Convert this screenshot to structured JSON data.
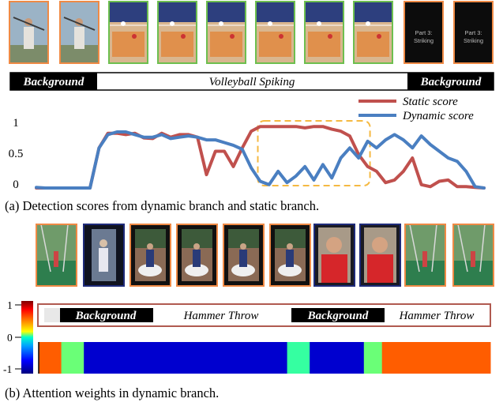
{
  "panel_a": {
    "frames": [
      {
        "kind": "archery",
        "border": "#ef8a45",
        "text": ""
      },
      {
        "kind": "archery",
        "border": "#ef8a45",
        "text": ""
      },
      {
        "kind": "court",
        "border": "#6dbf4f",
        "text": ""
      },
      {
        "kind": "court",
        "border": "#6dbf4f",
        "text": ""
      },
      {
        "kind": "court",
        "border": "#6dbf4f",
        "text": ""
      },
      {
        "kind": "court",
        "border": "#6dbf4f",
        "text": ""
      },
      {
        "kind": "court",
        "border": "#6dbf4f",
        "text": ""
      },
      {
        "kind": "court",
        "border": "#6dbf4f",
        "text": ""
      },
      {
        "kind": "title-card",
        "border": "#ef8a45",
        "text": "Part 3: Striking"
      },
      {
        "kind": "title-card",
        "border": "#ef8a45",
        "text": "Part 3: Striking"
      }
    ],
    "segments": [
      "Background",
      "Volleyball Spiking",
      "Background"
    ],
    "caption": "(a) Detection scores from dynamic branch and static branch."
  },
  "chart_data": {
    "type": "line",
    "x": [
      0,
      2,
      4,
      6,
      8,
      10,
      12,
      14,
      16,
      18,
      20,
      22,
      24,
      26,
      28,
      30,
      32,
      34,
      36,
      38,
      40,
      42,
      44,
      46,
      48,
      50,
      52,
      54,
      56,
      58,
      60,
      62,
      64,
      66,
      68,
      70,
      72,
      74,
      76,
      78,
      80,
      82,
      84,
      86,
      88,
      90,
      92,
      94,
      96,
      98,
      100
    ],
    "series": [
      {
        "name": "Static score",
        "color": "#c0504d",
        "values": [
          0,
          0,
          0,
          0,
          0,
          0,
          0,
          0.6,
          0.82,
          0.82,
          0.8,
          0.82,
          0.75,
          0.74,
          0.82,
          0.76,
          0.8,
          0.8,
          0.76,
          0.2,
          0.55,
          0.55,
          0.32,
          0.6,
          0.85,
          0.92,
          0.92,
          0.92,
          0.92,
          0.92,
          0.9,
          0.92,
          0.92,
          0.88,
          0.85,
          0.78,
          0.5,
          0.32,
          0.25,
          0.08,
          0.12,
          0.25,
          0.45,
          0.05,
          0.02,
          0.1,
          0.12,
          0.02,
          0.02,
          0.01,
          0
        ]
      },
      {
        "name": "Dynamic score",
        "color": "#4a7fc1",
        "values": [
          0.01,
          0,
          0,
          0,
          0,
          0,
          0,
          0.6,
          0.8,
          0.84,
          0.84,
          0.8,
          0.76,
          0.76,
          0.8,
          0.74,
          0.76,
          0.78,
          0.76,
          0.72,
          0.72,
          0.68,
          0.64,
          0.58,
          0.3,
          0.1,
          0.05,
          0.25,
          0.08,
          0.18,
          0.32,
          0.12,
          0.35,
          0.15,
          0.45,
          0.6,
          0.45,
          0.7,
          0.6,
          0.72,
          0.8,
          0.72,
          0.6,
          0.78,
          0.65,
          0.55,
          0.45,
          0.4,
          0.25,
          0.02,
          0
        ]
      }
    ],
    "yticks": [
      "0",
      "0.5",
      "1"
    ],
    "ylim": [
      0,
      1.1
    ],
    "legend": "top-right",
    "highlight": {
      "x_start": 50,
      "x_end": 74,
      "color": "#f5b942"
    }
  },
  "panel_b": {
    "frames": [
      {
        "kind": "field",
        "border": "#ef8a45"
      },
      {
        "kind": "dark-field",
        "border": "#1f2b7a"
      },
      {
        "kind": "throw",
        "border": "#ef8a45"
      },
      {
        "kind": "throw",
        "border": "#ef8a45"
      },
      {
        "kind": "throw",
        "border": "#ef8a45"
      },
      {
        "kind": "throw",
        "border": "#ef8a45"
      },
      {
        "kind": "closeup",
        "border": "#1f2b7a"
      },
      {
        "kind": "closeup",
        "border": "#1f2b7a"
      },
      {
        "kind": "field",
        "border": "#ef8a45"
      },
      {
        "kind": "field",
        "border": "#ef8a45"
      }
    ],
    "segments": [
      "Background",
      "Hammer Throw",
      "Background",
      "Hammer Throw"
    ],
    "colorbar_ticks": [
      "1",
      "0",
      "-1"
    ],
    "attention": [
      {
        "to": 0.05,
        "value": 0.55
      },
      {
        "to": 0.1,
        "value": 0.1
      },
      {
        "to": 0.55,
        "value": -0.85
      },
      {
        "to": 0.6,
        "value": 0.05
      },
      {
        "to": 0.72,
        "value": -0.85
      },
      {
        "to": 0.76,
        "value": 0.1
      },
      {
        "to": 1.0,
        "value": 0.55
      }
    ],
    "caption": "(b) Attention weights in dynamic branch."
  }
}
